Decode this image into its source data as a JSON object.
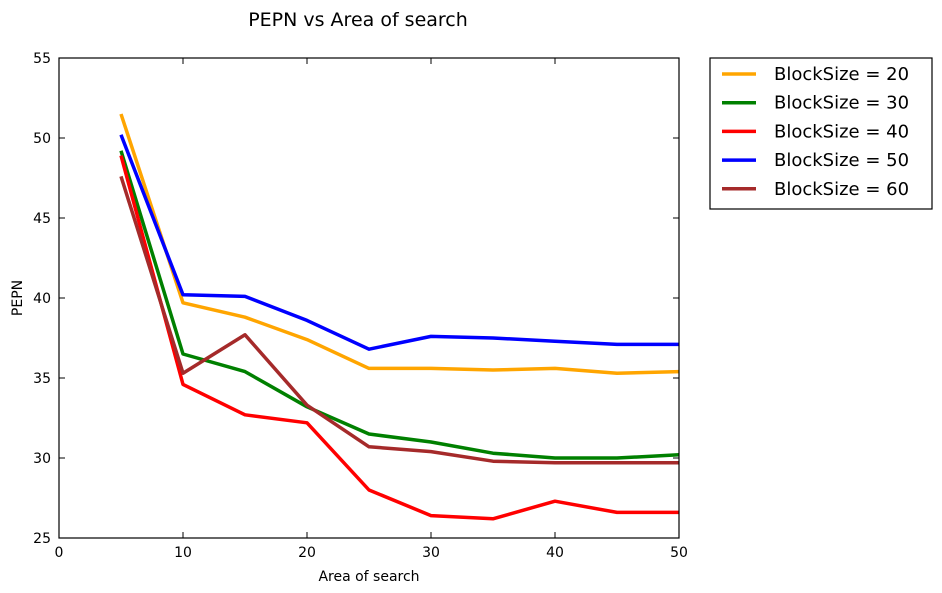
{
  "chart_data": {
    "type": "line",
    "title": "PEPN vs Area of search",
    "xlabel": "Area of search",
    "ylabel": "PEPN",
    "xlim": [
      0,
      50
    ],
    "ylim": [
      25,
      55
    ],
    "xticks": [
      "0",
      "10",
      "20",
      "30",
      "40",
      "50"
    ],
    "yticks": [
      "25",
      "30",
      "35",
      "40",
      "45",
      "50",
      "55"
    ],
    "grid": false,
    "legend_position": "outside-top-right",
    "x": [
      5,
      10,
      15,
      20,
      25,
      30,
      35,
      40,
      45,
      50
    ],
    "series": [
      {
        "name": "BlockSize = 20",
        "color": "#ffa500",
        "values": [
          51.5,
          39.7,
          38.8,
          37.4,
          35.6,
          35.6,
          35.5,
          35.6,
          35.3,
          35.4
        ]
      },
      {
        "name": "BlockSize = 30",
        "color": "#008000",
        "values": [
          49.2,
          36.5,
          35.4,
          33.2,
          31.5,
          31.0,
          30.3,
          30.0,
          30.0,
          30.2
        ]
      },
      {
        "name": "BlockSize = 40",
        "color": "#ff0000",
        "values": [
          48.9,
          34.6,
          32.7,
          32.2,
          28.0,
          26.4,
          26.2,
          27.3,
          26.6,
          26.6
        ]
      },
      {
        "name": "BlockSize = 50",
        "color": "#0000ff",
        "values": [
          50.2,
          40.2,
          40.1,
          38.6,
          36.8,
          37.6,
          37.5,
          37.3,
          37.1,
          37.1
        ]
      },
      {
        "name": "BlockSize = 60",
        "color": "#a52a2a",
        "values": [
          47.6,
          35.3,
          37.7,
          33.3,
          30.7,
          30.4,
          29.8,
          29.7,
          29.7,
          29.7
        ]
      }
    ]
  }
}
